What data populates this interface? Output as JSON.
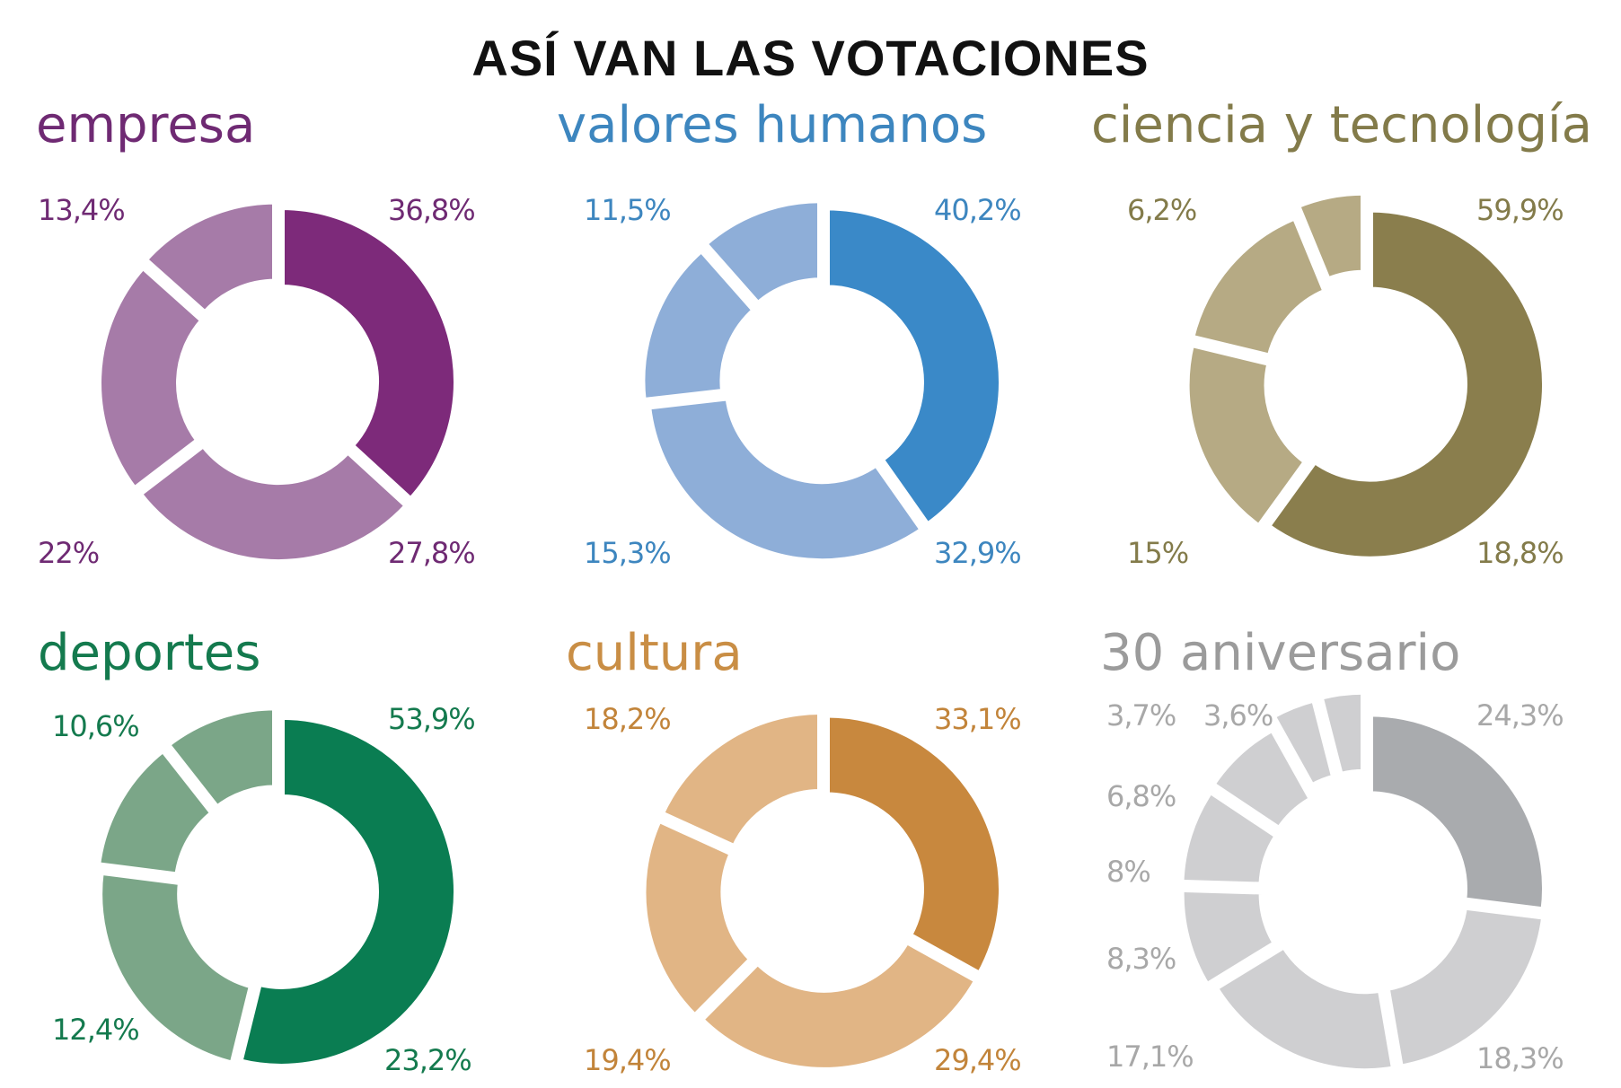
{
  "title": "ASÍ VAN LAS VOTACIONES",
  "chart_data": [
    {
      "type": "pie",
      "title": "empresa",
      "colors": {
        "title": "#6f2a73",
        "labels": "#6f2a73",
        "main": "#7d2a7a",
        "rest": "#a67ba8"
      },
      "values": [
        36.8,
        27.8,
        22,
        13.4
      ],
      "labels": [
        "36,8%",
        "27,8%",
        "22%",
        "13,4%"
      ]
    },
    {
      "type": "pie",
      "title": "valores humanos",
      "colors": {
        "title": "#3d86bf",
        "labels": "#3d86bf",
        "main": "#3a89c8",
        "rest": "#8eaed8"
      },
      "values": [
        40.2,
        32.9,
        15.3,
        11.5
      ],
      "labels": [
        "40,2%",
        "32,9%",
        "15,3%",
        "11,5%"
      ]
    },
    {
      "type": "pie",
      "title": "ciencia y tecnología",
      "colors": {
        "title": "#837b4a",
        "labels": "#837b4a",
        "main": "#8a7e4d",
        "rest": "#b6aa84"
      },
      "values": [
        59.9,
        18.8,
        15,
        6.2
      ],
      "labels": [
        "59,9%",
        "18,8%",
        "15%",
        "6,2%"
      ]
    },
    {
      "type": "pie",
      "title": "deportes",
      "colors": {
        "title": "#147a4e",
        "labels": "#147a4e",
        "main": "#0a7d52",
        "rest": "#7ba688"
      },
      "values": [
        53.9,
        23.2,
        12.4,
        10.6
      ],
      "labels": [
        "53,9%",
        "23,2%",
        "12,4%",
        "10,6%"
      ]
    },
    {
      "type": "pie",
      "title": "cultura",
      "colors": {
        "title": "#c98e45",
        "labels": "#c2843a",
        "main": "#c8883e",
        "rest": "#e1b585"
      },
      "values": [
        33.1,
        29.4,
        19.4,
        18.2
      ],
      "labels": [
        "33,1%",
        "29,4%",
        "19,4%",
        "18,2%"
      ]
    },
    {
      "type": "pie",
      "title": "30 aniversario",
      "colors": {
        "title": "#9b9b9b",
        "labels": "#a8a8a8",
        "main": "#a9abae",
        "rest": "#cfcfd1"
      },
      "values": [
        24.3,
        18.3,
        17.1,
        8.3,
        8,
        6.8,
        3.7,
        3.6
      ],
      "labels": [
        "24,3%",
        "18,3%",
        "17,1%",
        "8,3%",
        "8%",
        "6,8%",
        "3,7%",
        "3,6%"
      ]
    }
  ]
}
